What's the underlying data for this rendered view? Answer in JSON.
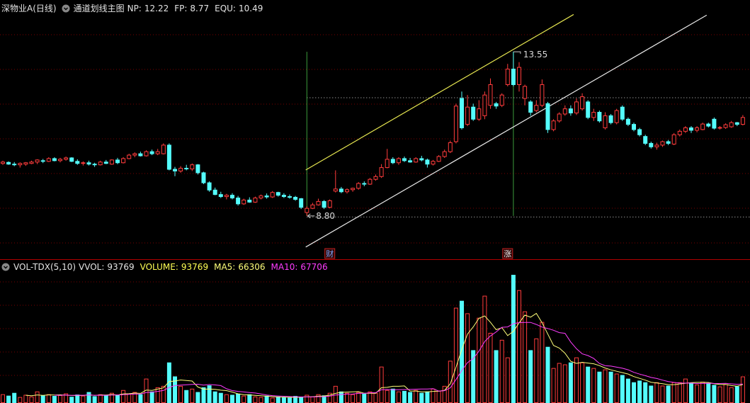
{
  "title": "深物业A(日线)",
  "indicator": "通道划线主图",
  "chart_data": {
    "type": "candlestick",
    "up_color": "#ff3c3c",
    "down_color": "#54fcfc",
    "ylim": [
      7.63,
      14.68
    ],
    "volume_ylim": [
      0,
      472000
    ],
    "indicators": [
      {
        "label": "NP:",
        "value": 12.22
      },
      {
        "label": "FP:",
        "value": 8.77
      },
      {
        "label": "EQU:",
        "value": 10.49
      }
    ],
    "ohlc": [
      [
        10.32,
        10.4,
        10.28,
        10.36
      ],
      [
        10.35,
        10.38,
        10.28,
        10.3
      ],
      [
        10.3,
        10.36,
        10.24,
        10.28
      ],
      [
        10.28,
        10.35,
        10.2,
        10.32
      ],
      [
        10.3,
        10.36,
        10.25,
        10.34
      ],
      [
        10.32,
        10.4,
        10.3,
        10.36
      ],
      [
        10.36,
        10.44,
        10.3,
        10.42
      ],
      [
        10.4,
        10.45,
        10.33,
        10.38
      ],
      [
        10.38,
        10.5,
        10.36,
        10.46
      ],
      [
        10.46,
        10.5,
        10.38,
        10.4
      ],
      [
        10.4,
        10.48,
        10.35,
        10.44
      ],
      [
        10.44,
        10.52,
        10.4,
        10.48
      ],
      [
        10.48,
        10.5,
        10.36,
        10.38
      ],
      [
        10.38,
        10.44,
        10.28,
        10.32
      ],
      [
        10.32,
        10.38,
        10.26,
        10.34
      ],
      [
        10.34,
        10.4,
        10.26,
        10.3
      ],
      [
        10.3,
        10.34,
        10.22,
        10.28
      ],
      [
        10.28,
        10.4,
        10.26,
        10.36
      ],
      [
        10.36,
        10.42,
        10.3,
        10.32
      ],
      [
        10.3,
        10.44,
        10.28,
        10.42
      ],
      [
        10.42,
        10.48,
        10.3,
        10.34
      ],
      [
        10.34,
        10.5,
        10.32,
        10.46
      ],
      [
        10.46,
        10.6,
        10.44,
        10.56
      ],
      [
        10.56,
        10.64,
        10.5,
        10.6
      ],
      [
        10.6,
        10.66,
        10.52,
        10.54
      ],
      [
        10.54,
        10.7,
        10.52,
        10.66
      ],
      [
        10.66,
        10.72,
        10.56,
        10.6
      ],
      [
        10.6,
        10.74,
        10.56,
        10.66
      ],
      [
        10.6,
        10.9,
        10.58,
        10.85
      ],
      [
        10.85,
        10.9,
        10.12,
        10.15
      ],
      [
        10.15,
        10.22,
        9.95,
        10.1
      ],
      [
        10.1,
        10.24,
        10.05,
        10.18
      ],
      [
        10.18,
        10.28,
        10.12,
        10.16
      ],
      [
        10.16,
        10.32,
        10.1,
        10.28
      ],
      [
        10.28,
        10.3,
        10.0,
        10.05
      ],
      [
        10.05,
        10.08,
        9.72,
        9.76
      ],
      [
        9.76,
        9.8,
        9.5,
        9.55
      ],
      [
        9.55,
        9.62,
        9.4,
        9.42
      ],
      [
        9.42,
        9.5,
        9.32,
        9.36
      ],
      [
        9.36,
        9.44,
        9.28,
        9.4
      ],
      [
        9.4,
        9.46,
        9.28,
        9.32
      ],
      [
        9.32,
        9.38,
        9.1,
        9.15
      ],
      [
        9.15,
        9.3,
        9.12,
        9.26
      ],
      [
        9.26,
        9.34,
        9.18,
        9.2
      ],
      [
        9.2,
        9.36,
        9.18,
        9.32
      ],
      [
        9.32,
        9.42,
        9.28,
        9.38
      ],
      [
        9.38,
        9.45,
        9.3,
        9.35
      ],
      [
        9.35,
        9.52,
        9.32,
        9.48
      ],
      [
        9.48,
        9.5,
        9.36,
        9.4
      ],
      [
        9.4,
        9.46,
        9.32,
        9.36
      ],
      [
        9.36,
        9.42,
        9.3,
        9.34
      ],
      [
        9.34,
        9.38,
        9.24,
        9.28
      ],
      [
        9.3,
        9.32,
        9.0,
        9.05
      ],
      [
        8.9,
        9.08,
        8.8,
        9.02
      ],
      [
        9.02,
        9.18,
        9.0,
        9.12
      ],
      [
        9.12,
        9.3,
        9.1,
        9.22
      ],
      [
        9.22,
        9.26,
        9.0,
        9.05
      ],
      [
        9.05,
        9.28,
        9.02,
        9.24
      ],
      [
        9.52,
        10.12,
        9.48,
        9.58
      ],
      [
        9.58,
        9.64,
        9.46,
        9.5
      ],
      [
        9.5,
        9.6,
        9.45,
        9.56
      ],
      [
        9.56,
        9.62,
        9.5,
        9.6
      ],
      [
        9.6,
        9.78,
        9.56,
        9.74
      ],
      [
        9.74,
        9.8,
        9.66,
        9.72
      ],
      [
        9.72,
        9.9,
        9.7,
        9.86
      ],
      [
        9.86,
        10.0,
        9.82,
        9.94
      ],
      [
        9.94,
        10.3,
        9.9,
        10.2
      ],
      [
        10.2,
        10.74,
        10.18,
        10.44
      ],
      [
        10.44,
        10.5,
        10.3,
        10.34
      ],
      [
        10.34,
        10.5,
        10.28,
        10.46
      ],
      [
        10.46,
        10.52,
        10.36,
        10.4
      ],
      [
        10.4,
        10.48,
        10.34,
        10.36
      ],
      [
        10.36,
        10.5,
        10.34,
        10.46
      ],
      [
        10.46,
        10.54,
        10.38,
        10.42
      ],
      [
        10.42,
        10.46,
        10.2,
        10.3
      ],
      [
        10.3,
        10.42,
        10.26,
        10.38
      ],
      [
        10.38,
        10.56,
        10.36,
        10.52
      ],
      [
        10.52,
        10.72,
        10.48,
        10.66
      ],
      [
        10.66,
        10.98,
        10.62,
        10.92
      ],
      [
        10.95,
        12.05,
        10.9,
        11.98
      ],
      [
        12.2,
        12.4,
        11.3,
        11.35
      ],
      [
        11.45,
        12.3,
        11.4,
        11.95
      ],
      [
        11.95,
        12.05,
        11.55,
        11.6
      ],
      [
        11.6,
        12.15,
        11.55,
        11.9
      ],
      [
        11.7,
        12.4,
        11.6,
        12.3
      ],
      [
        12.0,
        12.78,
        11.9,
        12.6
      ],
      [
        12.05,
        12.1,
        11.9,
        11.98
      ],
      [
        12.0,
        12.35,
        11.95,
        12.3
      ],
      [
        12.6,
        13.2,
        12.55,
        13.05
      ],
      [
        13.05,
        13.55,
        12.55,
        12.6
      ],
      [
        12.6,
        13.25,
        12.4,
        13.1
      ],
      [
        12.2,
        12.6,
        12.0,
        12.55
      ],
      [
        12.1,
        12.15,
        11.7,
        11.8
      ],
      [
        11.85,
        12.15,
        11.8,
        12.0
      ],
      [
        12.0,
        12.75,
        11.95,
        12.6
      ],
      [
        12.05,
        12.1,
        11.2,
        11.3
      ],
      [
        11.3,
        11.6,
        11.25,
        11.55
      ],
      [
        11.55,
        11.8,
        11.5,
        11.75
      ],
      [
        11.75,
        12.0,
        11.7,
        11.9
      ],
      [
        11.9,
        12.0,
        11.7,
        11.78
      ],
      [
        11.78,
        12.2,
        11.72,
        12.1
      ],
      [
        11.9,
        12.35,
        11.85,
        12.25
      ],
      [
        12.1,
        12.15,
        11.6,
        11.65
      ],
      [
        11.65,
        11.9,
        11.55,
        11.8
      ],
      [
        11.8,
        11.85,
        11.5,
        11.55
      ],
      [
        11.35,
        11.8,
        11.3,
        11.7
      ],
      [
        11.7,
        11.75,
        11.45,
        11.5
      ],
      [
        11.5,
        11.9,
        11.45,
        11.85
      ],
      [
        11.95,
        12.0,
        11.55,
        11.6
      ],
      [
        11.6,
        11.65,
        11.4,
        11.45
      ],
      [
        11.45,
        11.5,
        11.25,
        11.3
      ],
      [
        11.3,
        11.35,
        11.1,
        11.15
      ],
      [
        11.1,
        11.15,
        10.85,
        10.9
      ],
      [
        10.9,
        10.95,
        10.75,
        10.8
      ],
      [
        10.8,
        10.92,
        10.72,
        10.85
      ],
      [
        10.85,
        10.98,
        10.8,
        10.95
      ],
      [
        10.95,
        11.0,
        10.85,
        10.9
      ],
      [
        10.88,
        11.2,
        10.85,
        11.15
      ],
      [
        11.15,
        11.3,
        11.1,
        11.25
      ],
      [
        11.25,
        11.4,
        11.2,
        11.35
      ],
      [
        11.35,
        11.4,
        11.2,
        11.28
      ],
      [
        11.28,
        11.4,
        11.22,
        11.35
      ],
      [
        11.3,
        11.5,
        11.28,
        11.46
      ],
      [
        11.46,
        11.5,
        11.36,
        11.4
      ],
      [
        11.6,
        11.65,
        11.3,
        11.34
      ],
      [
        11.34,
        11.4,
        11.3,
        11.36
      ],
      [
        11.36,
        11.48,
        11.32,
        11.44
      ],
      [
        11.38,
        11.55,
        11.35,
        11.5
      ],
      [
        11.5,
        11.52,
        11.4,
        11.45
      ],
      [
        11.45,
        11.72,
        11.42,
        11.65
      ]
    ],
    "volume": [
      30000,
      25000,
      35000,
      20000,
      28000,
      22000,
      40000,
      26000,
      30000,
      24000,
      27000,
      33000,
      21000,
      29000,
      25000,
      38000,
      23000,
      30000,
      26000,
      35000,
      28000,
      45000,
      32000,
      38000,
      30000,
      86000,
      40000,
      55000,
      60000,
      144000,
      94000,
      60000,
      45000,
      50000,
      38000,
      55000,
      62000,
      40000,
      35000,
      30000,
      28000,
      32000,
      25000,
      30000,
      22000,
      20000,
      25000,
      18000,
      22000,
      20000,
      18000,
      24000,
      20000,
      28000,
      22000,
      30000,
      26000,
      35000,
      60000,
      40000,
      35000,
      30000,
      38000,
      32000,
      40000,
      35000,
      129000,
      45000,
      50000,
      40000,
      42000,
      38000,
      45000,
      35000,
      40000,
      50000,
      42000,
      60000,
      150000,
      340000,
      365000,
      320000,
      188000,
      304000,
      383000,
      250000,
      188000,
      225000,
      162000,
      458000,
      403000,
      327000,
      188000,
      230000,
      289000,
      200000,
      124000,
      142000,
      137000,
      144000,
      162000,
      144000,
      129000,
      124000,
      111000,
      119000,
      111000,
      104000,
      99000,
      86000,
      73000,
      79000,
      73000,
      61000,
      73000,
      61000,
      61000,
      73000,
      73000,
      86000,
      72000,
      65000,
      75000,
      70000,
      63530,
      58000,
      66000,
      55000,
      58761,
      93769
    ],
    "ma5": {
      "label": "MA5:",
      "color": "#ffff7a",
      "values": [
        null,
        null,
        null,
        null,
        27600,
        26000,
        29000,
        27200,
        29200,
        28400,
        29400,
        28000,
        27000,
        26800,
        27000,
        29200,
        27200,
        29000,
        28400,
        30400,
        28400,
        32800,
        33200,
        35600,
        34600,
        46200,
        45200,
        49800,
        54200,
        77000,
        78600,
        82600,
        80600,
        78600,
        57400,
        49600,
        50000,
        49000,
        46000,
        44400,
        39000,
        33000,
        30000,
        29000,
        27400,
        25800,
        24400,
        23000,
        21400,
        21000,
        20600,
        20400,
        20800,
        22000,
        22400,
        24800,
        25200,
        28200,
        34600,
        38200,
        39200,
        40000,
        40600,
        35000,
        35000,
        35000,
        54800,
        56200,
        59800,
        59800,
        61200,
        43000,
        43000,
        40000,
        40000,
        41600,
        42400,
        45400,
        68400,
        128400,
        191400,
        247000,
        272600,
        303400,
        312000,
        289000,
        262600,
        270000,
        241600,
        256600,
        287200,
        315000,
        307600,
        321200,
        287400,
        246800,
        206200,
        197000,
        178400,
        149400,
        141800,
        145800,
        143200,
        140600,
        134000,
        125400,
        118800,
        113800,
        108800,
        103800,
        94600,
        88200,
        82000,
        74400,
        71800,
        69400,
        65800,
        65800,
        68200,
        70800,
        73000,
        73800,
        74200,
        73600,
        69100,
        66300,
        66500,
        62500,
        60260,
        66306
      ]
    },
    "ma10": {
      "label": "MA10:",
      "color": "#ff3cff",
      "values": [
        null,
        null,
        null,
        null,
        null,
        null,
        null,
        null,
        null,
        28000,
        27700,
        28500,
        27100,
        28000,
        27700,
        29300,
        27600,
        28000,
        27600,
        28700,
        28800,
        30000,
        31100,
        32000,
        32500,
        37300,
        39000,
        41500,
        44900,
        55800,
        62400,
        63900,
        65200,
        66400,
        67200,
        64100,
        66300,
        64800,
        62300,
        50900,
        44300,
        41500,
        39500,
        37500,
        35900,
        32400,
        28700,
        26500,
        25200,
        24200,
        23200,
        22400,
        21900,
        21700,
        21700,
        22700,
        22800,
        24500,
        28300,
        30300,
        32000,
        32600,
        34400,
        34800,
        36600,
        37100,
        47400,
        48400,
        47400,
        47400,
        48100,
        48900,
        49600,
        49900,
        49900,
        51400,
        42700,
        44200,
        54200,
        84200,
        116500,
        144700,
        159000,
        185900,
        220200,
        240200,
        254800,
        271300,
        272500,
        284300,
        288100,
        288800,
        288800,
        281400,
        272000,
        267000,
        260600,
        252300,
        249800,
        218400,
        194300,
        176000,
        170100,
        159500,
        141700,
        133600,
        132300,
        128500,
        124700,
        118900,
        110000,
        103500,
        97900,
        91600,
        87800,
        82000,
        77000,
        73900,
        71300,
        71300,
        71200,
        69800,
        70000,
        70900,
        70000,
        69700,
        70200,
        68400,
        66900,
        67706
      ]
    },
    "volume_panel": {
      "title": "VOL-TDX(5,10)",
      "vvol_label": "VVOL:",
      "volume_label": "VOLUME:"
    },
    "channel": [
      {
        "color": "#e6e650",
        "x": [
          52.8,
          99.5
        ],
        "y": [
          10.13,
          14.63
        ]
      },
      {
        "color": "#e8e8e8",
        "x": [
          52.8,
          122.7
        ],
        "y": [
          7.9,
          14.61
        ]
      }
    ],
    "annotations": [
      {
        "index": 89,
        "value": 13.55,
        "label": "13.55"
      },
      {
        "index": 53,
        "value": 8.8,
        "label": "8.80"
      }
    ],
    "events": [
      {
        "index": 57,
        "label": "财"
      },
      {
        "index": 88,
        "label": "涨"
      }
    ]
  }
}
